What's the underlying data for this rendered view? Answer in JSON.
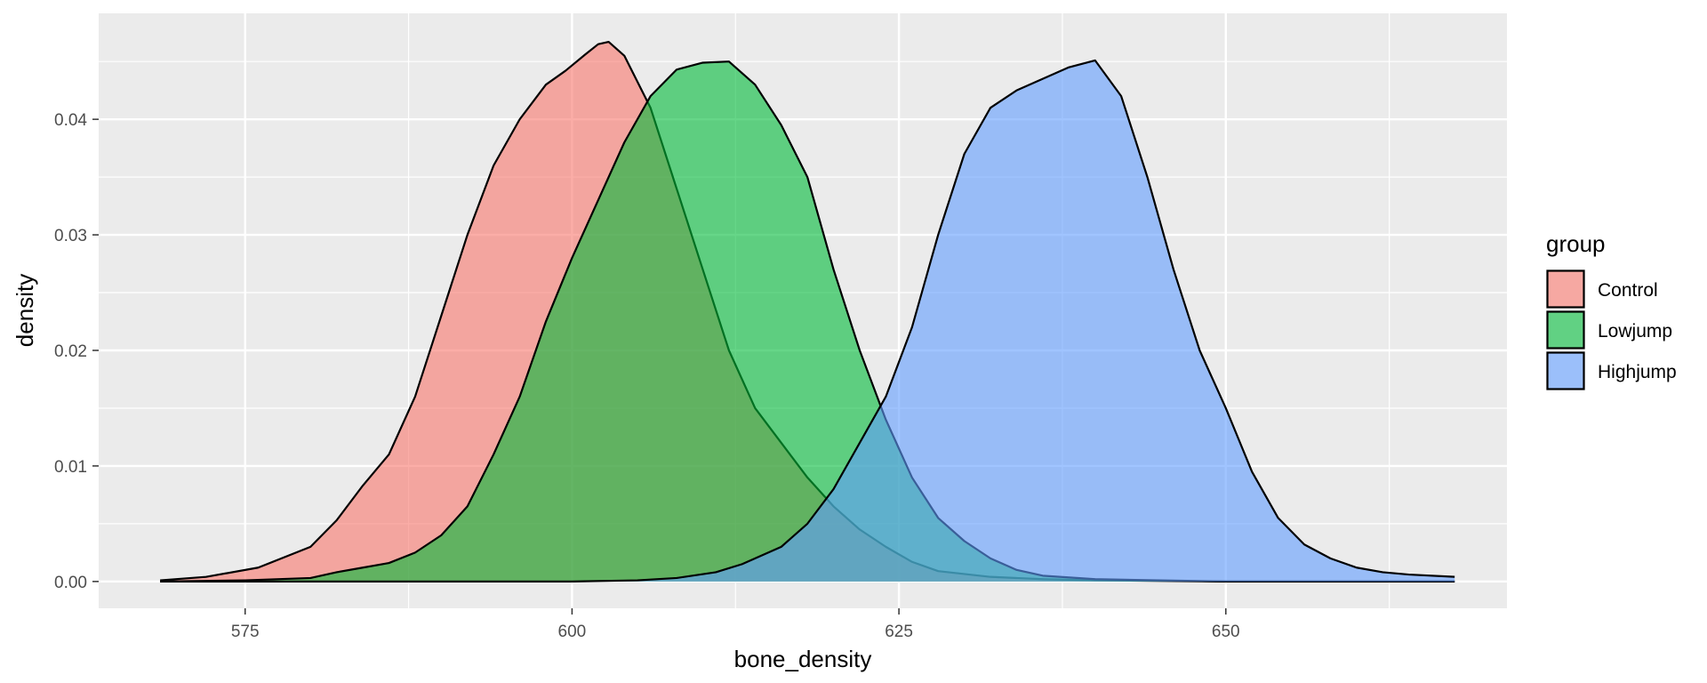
{
  "chart_data": {
    "type": "area",
    "title": "",
    "xlabel": "bone_density",
    "ylabel": "density",
    "xlim": [
      563.8,
      671.5
    ],
    "ylim": [
      -0.00232,
      0.04917
    ],
    "x_ticks": [
      575,
      600,
      625,
      650
    ],
    "x_tick_labels": [
      "575",
      "600",
      "625",
      "650"
    ],
    "y_ticks": [
      0.0,
      0.01,
      0.02,
      0.03,
      0.04
    ],
    "y_tick_labels": [
      "0.00",
      "0.01",
      "0.02",
      "0.03",
      "0.04"
    ],
    "grid": true,
    "legend": {
      "title": "group",
      "position": "right"
    },
    "series": [
      {
        "name": "Control",
        "color": "#F8766D",
        "x": [
          568.5,
          572,
          576,
          580,
          582,
          584,
          586,
          588,
          590,
          592,
          594,
          596,
          598,
          599.5,
          601,
          602,
          602.8,
          604,
          606,
          608,
          610,
          612,
          614,
          616,
          618,
          620,
          622,
          624,
          626,
          628,
          632,
          636,
          640,
          650,
          660,
          667.5
        ],
        "y": [
          0.0001,
          0.0004,
          0.0012,
          0.003,
          0.0053,
          0.0083,
          0.011,
          0.016,
          0.023,
          0.03,
          0.036,
          0.04,
          0.043,
          0.0442,
          0.0456,
          0.0465,
          0.0467,
          0.0455,
          0.041,
          0.034,
          0.027,
          0.02,
          0.015,
          0.012,
          0.009,
          0.0065,
          0.0045,
          0.003,
          0.0017,
          0.0009,
          0.0004,
          0.0002,
          0.0001,
          0.0,
          0.0,
          0.0
        ]
      },
      {
        "name": "Lowjump",
        "color": "#00BA38",
        "x": [
          568.5,
          575,
          580,
          582,
          584,
          586,
          588,
          590,
          592,
          594,
          596,
          598,
          600,
          602,
          604,
          606,
          608,
          610,
          612,
          614,
          616,
          618,
          620,
          622,
          624,
          626,
          628,
          630,
          632,
          634,
          636,
          640,
          650,
          660,
          667.5
        ],
        "y": [
          0.0,
          0.0001,
          0.0003,
          0.0008,
          0.0012,
          0.0016,
          0.0025,
          0.004,
          0.0065,
          0.011,
          0.016,
          0.0225,
          0.028,
          0.033,
          0.038,
          0.042,
          0.0443,
          0.0449,
          0.045,
          0.043,
          0.0395,
          0.035,
          0.027,
          0.02,
          0.014,
          0.009,
          0.0055,
          0.0035,
          0.002,
          0.001,
          0.0005,
          0.0002,
          0.0,
          0.0,
          0.0
        ]
      },
      {
        "name": "Highjump",
        "color": "#619CFF",
        "x": [
          568.5,
          600,
          605,
          608,
          611,
          613,
          616,
          618,
          620,
          622,
          624,
          626,
          628,
          630,
          632,
          634,
          636,
          638,
          640,
          642,
          644,
          646,
          648,
          650,
          652,
          654,
          656,
          658,
          660,
          662,
          664,
          667.5
        ],
        "y": [
          0.0,
          0.0,
          0.0001,
          0.0003,
          0.0008,
          0.0015,
          0.003,
          0.005,
          0.008,
          0.012,
          0.016,
          0.022,
          0.03,
          0.037,
          0.041,
          0.0425,
          0.0435,
          0.0445,
          0.0451,
          0.042,
          0.035,
          0.027,
          0.02,
          0.015,
          0.0095,
          0.0055,
          0.0032,
          0.002,
          0.0012,
          0.0008,
          0.0006,
          0.0004
        ]
      }
    ]
  }
}
